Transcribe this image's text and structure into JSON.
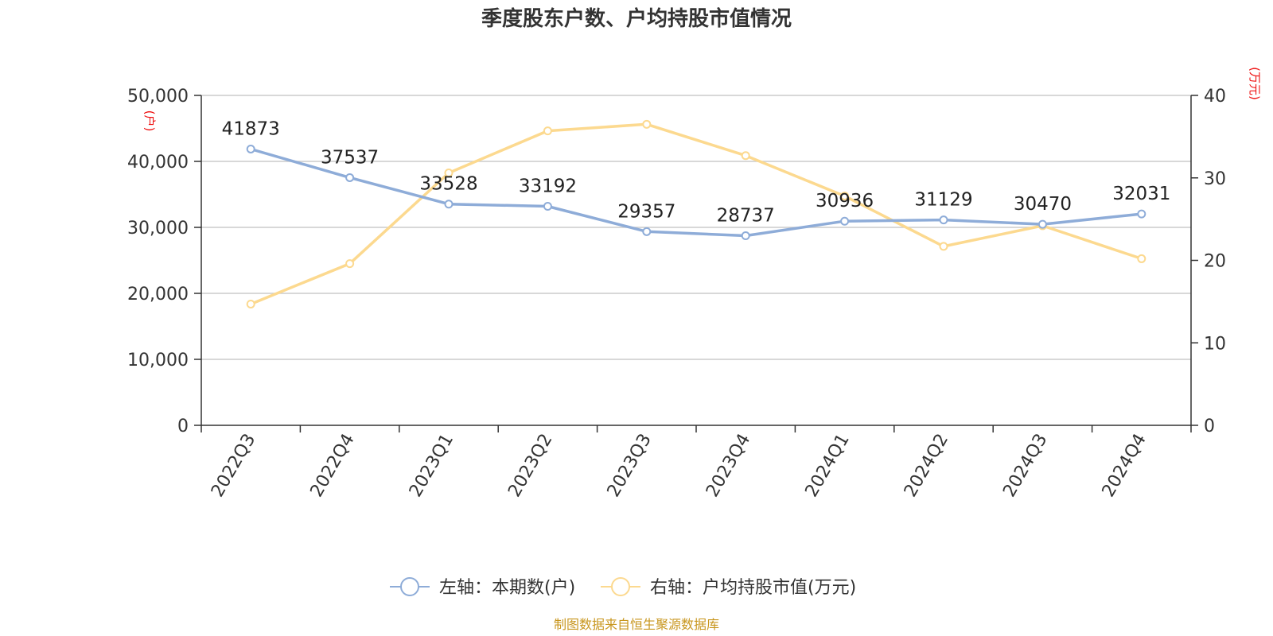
{
  "chart_data": {
    "type": "line",
    "title": "季度股东户数、户均持股市值情况",
    "categories": [
      "2022Q3",
      "2022Q4",
      "2023Q1",
      "2023Q2",
      "2023Q3",
      "2023Q4",
      "2024Q1",
      "2024Q2",
      "2024Q3",
      "2024Q4"
    ],
    "left_axis": {
      "unit": "(户)",
      "range": [
        0,
        50000
      ],
      "ticks": [
        0,
        10000,
        20000,
        30000,
        40000,
        50000
      ],
      "tick_labels": [
        "0",
        "10,000",
        "20,000",
        "30,000",
        "40,000",
        "50,000"
      ]
    },
    "right_axis": {
      "unit": "(万元)",
      "range": [
        0,
        40
      ],
      "ticks": [
        0,
        10,
        20,
        30,
        40
      ],
      "tick_labels": [
        "0",
        "10",
        "20",
        "30",
        "40"
      ]
    },
    "series": [
      {
        "name": "左轴：本期数(户)",
        "axis": "left",
        "color": "#8eacd8",
        "values": [
          41873,
          37537,
          33528,
          33192,
          29357,
          28737,
          30936,
          31129,
          30470,
          32031
        ],
        "labels": [
          "41873",
          "37537",
          "33528",
          "33192",
          "29357",
          "28737",
          "30936",
          "31129",
          "30470",
          "32031"
        ]
      },
      {
        "name": "右轴：户均持股市值(万元)",
        "axis": "right",
        "color": "#fcd98f",
        "values": [
          14.7,
          19.6,
          30.6,
          35.7,
          36.5,
          32.7,
          27.8,
          21.7,
          24.2,
          20.2
        ]
      }
    ],
    "grid": true,
    "legend_position": "bottom-center"
  },
  "source": "制图数据来自恒生聚源数据库"
}
